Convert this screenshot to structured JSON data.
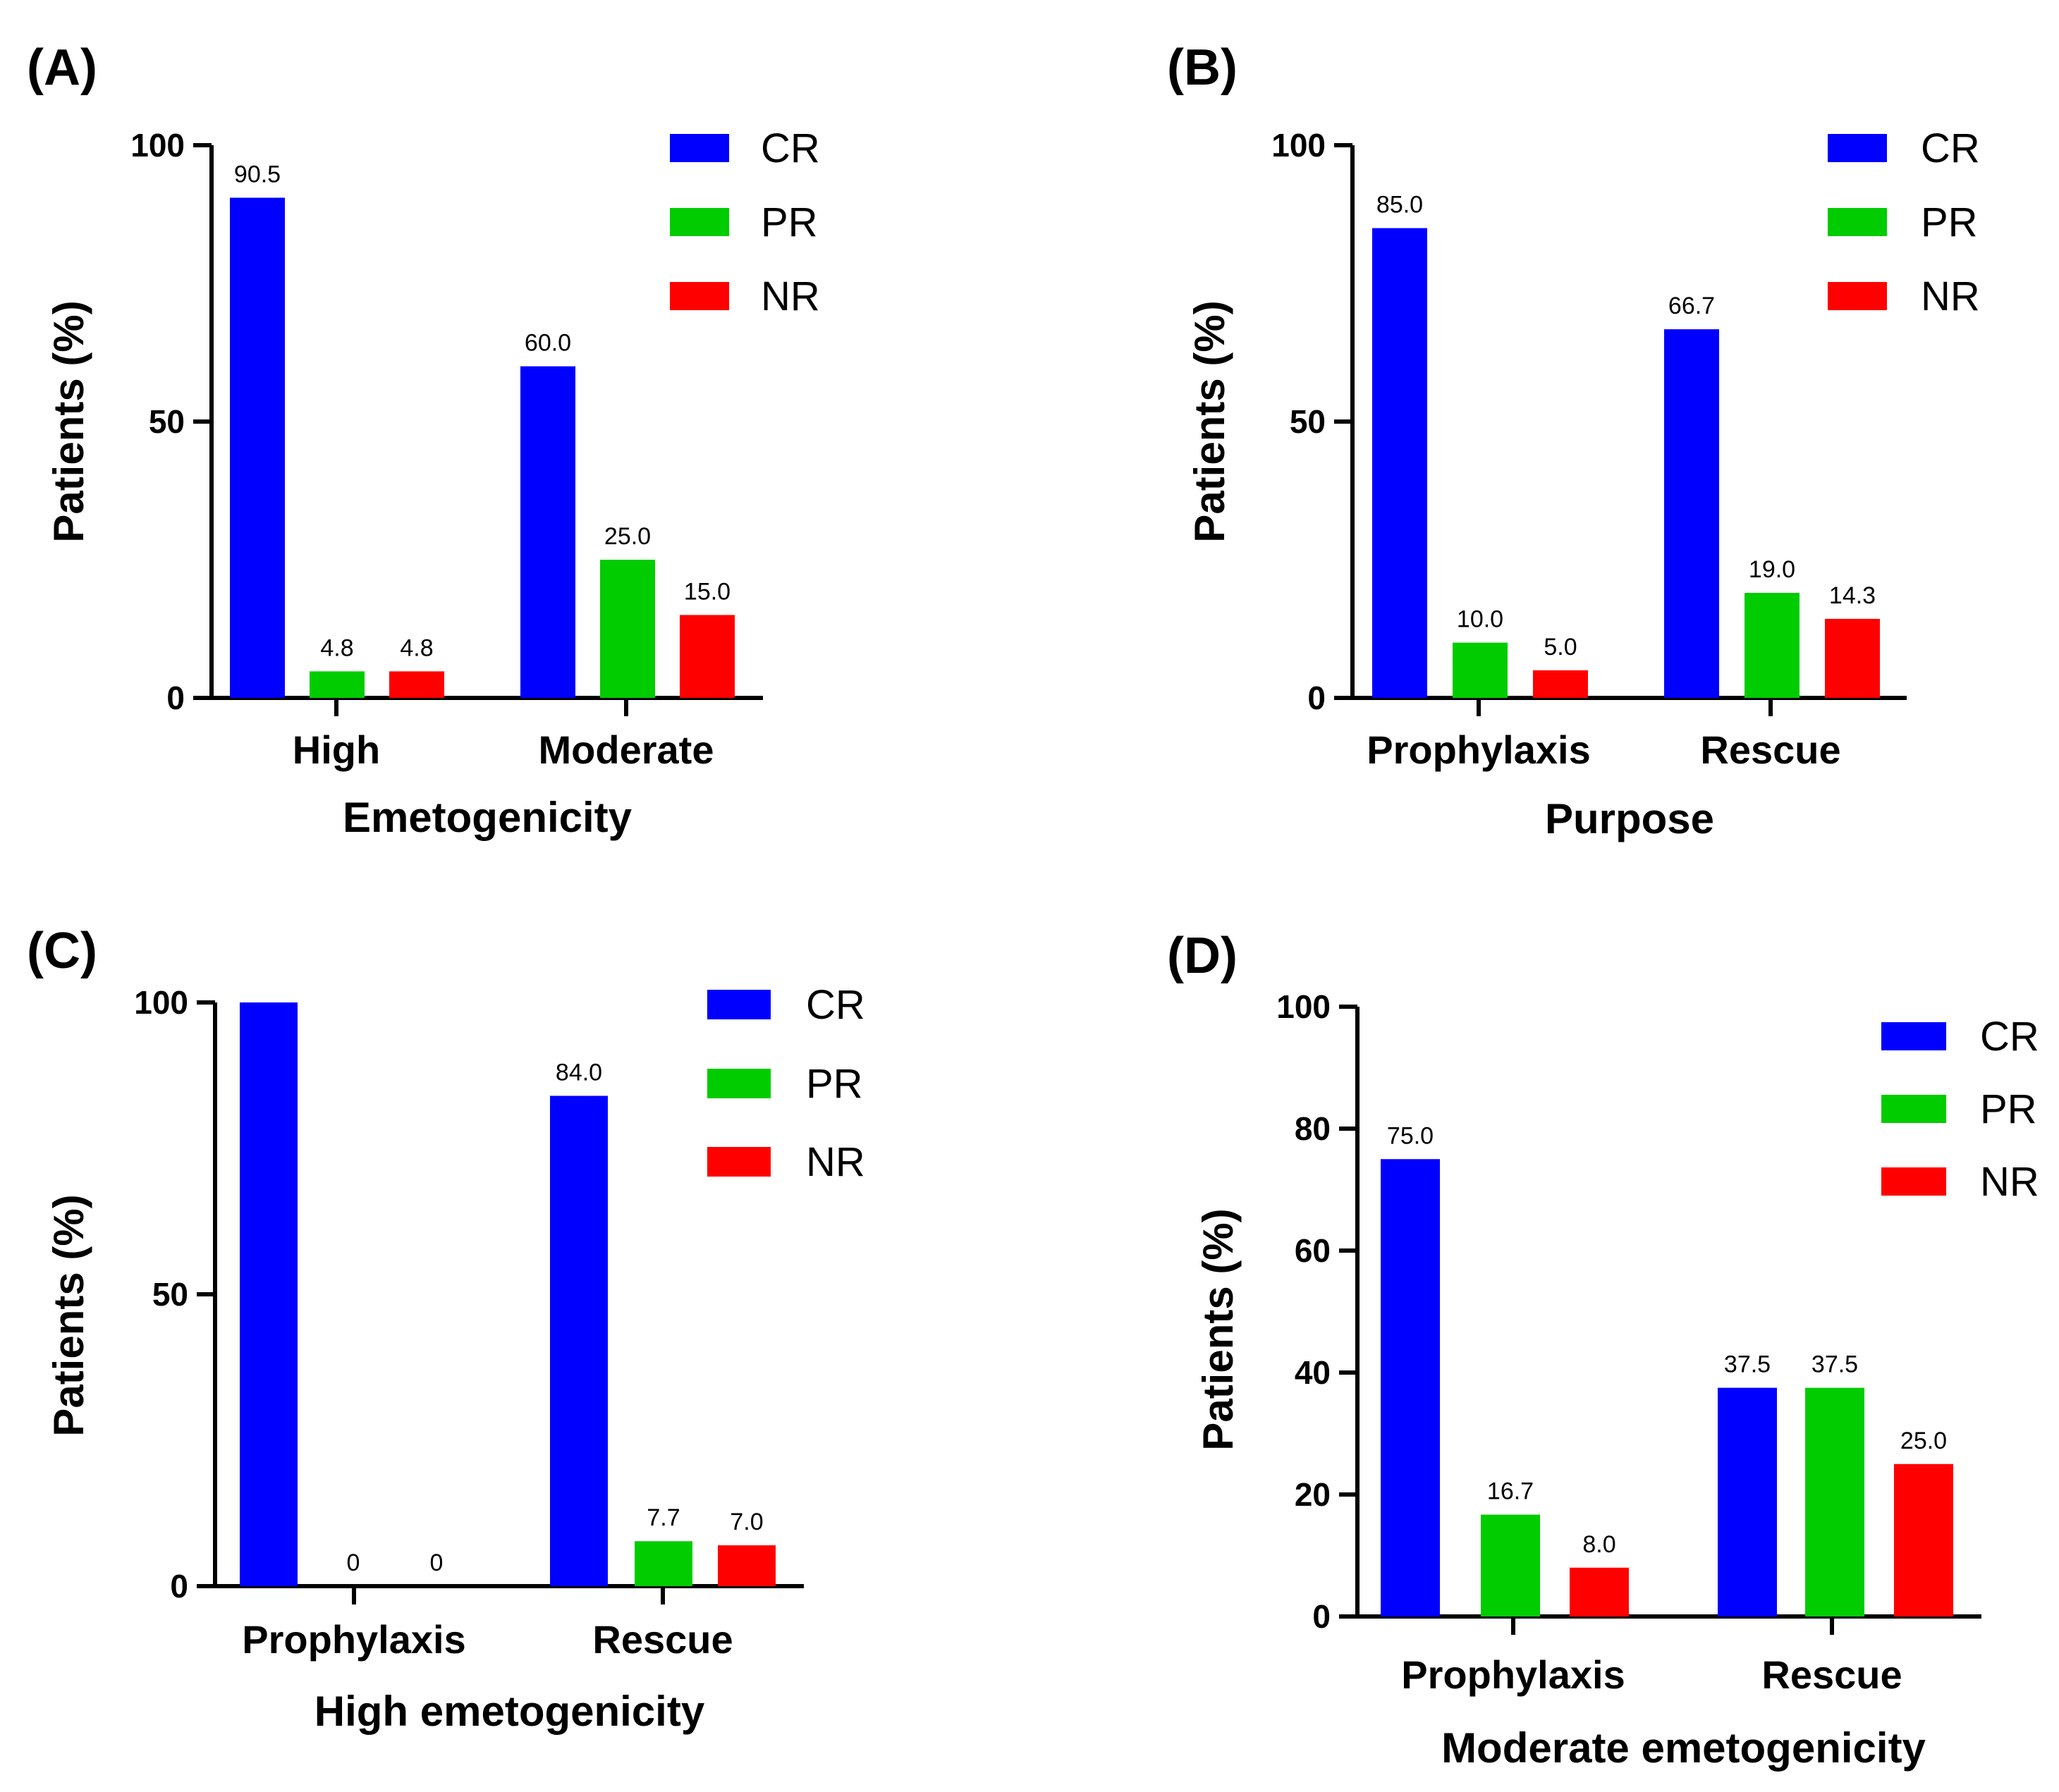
{
  "colors": {
    "CR": "#0000ff",
    "PR": "#00cc00",
    "NR": "#ff0000"
  },
  "chart_data": [
    {
      "type": "bar",
      "panel": "(A)",
      "xlabel": "Emetogenicity",
      "ylabel": "Patients (%)",
      "ylim": [
        0,
        100
      ],
      "yticks": [
        "0",
        "50",
        "100"
      ],
      "categories": [
        "High",
        "Moderate"
      ],
      "series": [
        {
          "name": "CR",
          "values": [
            90.5,
            60.0
          ],
          "labels": [
            "90.5",
            "60.0"
          ]
        },
        {
          "name": "PR",
          "values": [
            4.8,
            25.0
          ],
          "labels": [
            "4.8",
            "25.0"
          ]
        },
        {
          "name": "NR",
          "values": [
            4.8,
            15.0
          ],
          "labels": [
            "4.8",
            "15.0"
          ]
        }
      ]
    },
    {
      "type": "bar",
      "panel": "(B)",
      "xlabel": "Purpose",
      "ylabel": "Patients (%)",
      "ylim": [
        0,
        100
      ],
      "yticks": [
        "0",
        "50",
        "100"
      ],
      "categories": [
        "Prophylaxis",
        "Rescue"
      ],
      "series": [
        {
          "name": "CR",
          "values": [
            85.0,
            66.7
          ],
          "labels": [
            "85.0",
            "66.7"
          ]
        },
        {
          "name": "PR",
          "values": [
            10.0,
            19.0
          ],
          "labels": [
            "10.0",
            "19.0"
          ]
        },
        {
          "name": "NR",
          "values": [
            5.0,
            14.3
          ],
          "labels": [
            "5.0",
            "14.3"
          ]
        }
      ]
    },
    {
      "type": "bar",
      "panel": "(C)",
      "xlabel": "High  emetogenicity",
      "ylabel": "Patients (%)",
      "ylim": [
        0,
        100
      ],
      "yticks": [
        "0",
        "50",
        "100"
      ],
      "categories": [
        "Prophylaxis",
        "Rescue"
      ],
      "series": [
        {
          "name": "CR",
          "values": [
            100,
            84.0
          ],
          "labels": [
            "",
            "84.0"
          ]
        },
        {
          "name": "PR",
          "values": [
            0,
            7.7
          ],
          "labels": [
            "0",
            "7.7"
          ]
        },
        {
          "name": "NR",
          "values": [
            0,
            7.0
          ],
          "labels": [
            "0",
            "7.0"
          ]
        }
      ]
    },
    {
      "type": "bar",
      "panel": "(D)",
      "xlabel": "Moderate emetogenicity",
      "ylabel": "Patients (%)",
      "ylim": [
        0,
        100
      ],
      "yticks": [
        "0",
        "20",
        "40",
        "60",
        "80",
        "100"
      ],
      "categories": [
        "Prophylaxis",
        "Rescue"
      ],
      "series": [
        {
          "name": "CR",
          "values": [
            75.0,
            37.5
          ],
          "labels": [
            "75.0",
            "37.5"
          ]
        },
        {
          "name": "PR",
          "values": [
            16.7,
            37.5
          ],
          "labels": [
            "16.7",
            "37.5"
          ]
        },
        {
          "name": "NR",
          "values": [
            8.0,
            25.0
          ],
          "labels": [
            "8.0",
            "25.0"
          ]
        }
      ]
    }
  ]
}
